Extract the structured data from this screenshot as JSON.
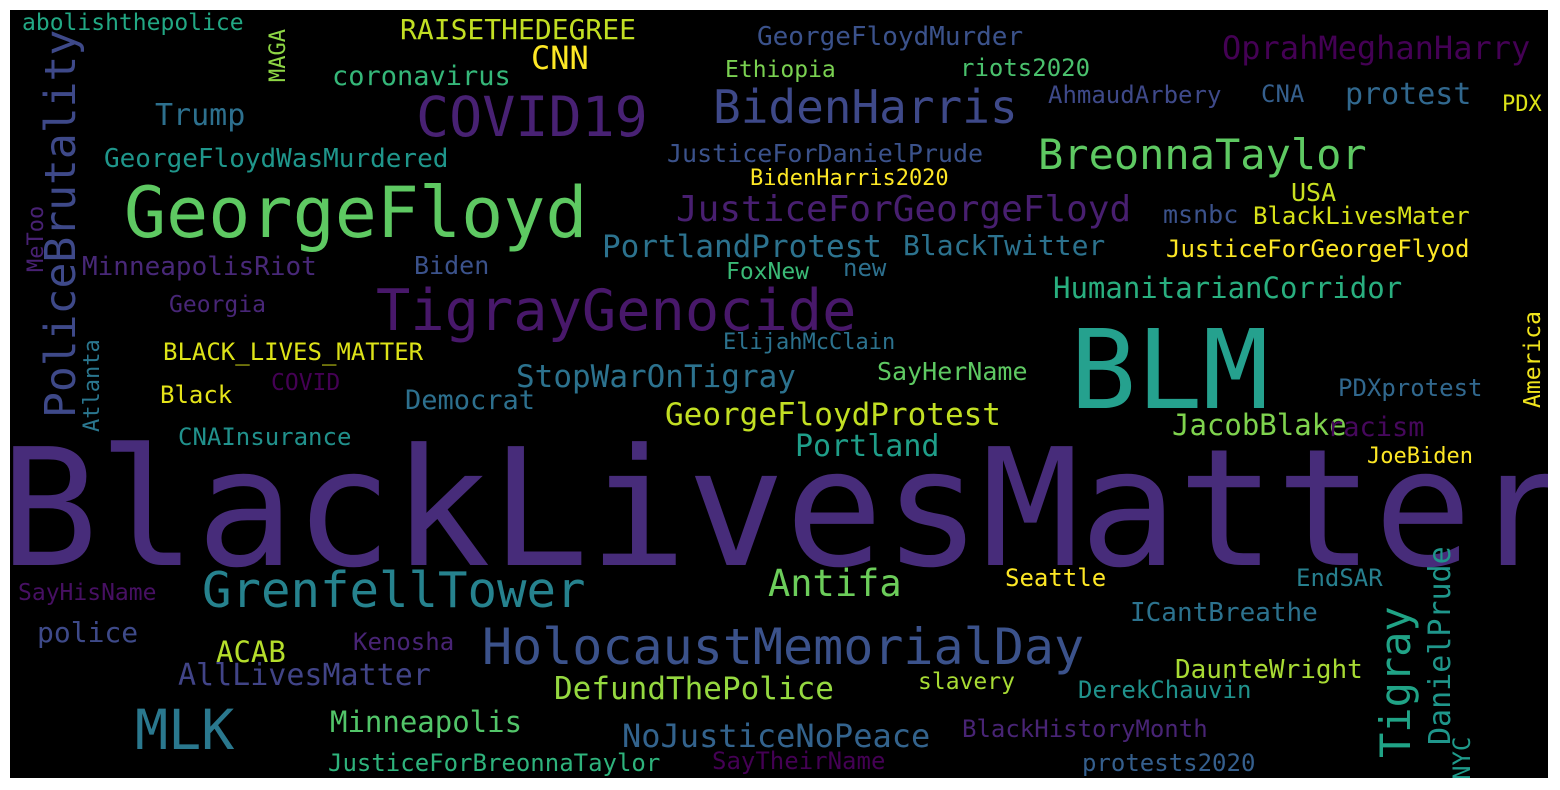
{
  "words": [
    {
      "text": "BlackLivesMatter",
      "color": "#472c7a"
    },
    {
      "text": "BLM",
      "color": "#25a18e"
    },
    {
      "text": "GeorgeFloyd",
      "color": "#5ec962"
    },
    {
      "text": "TigrayGenocide",
      "color": "#48186a"
    },
    {
      "text": "HolocaustMemorialDay",
      "color": "#3b528b"
    },
    {
      "text": "GrenfellTower",
      "color": "#26828e"
    },
    {
      "text": "COVID19",
      "color": "#482173"
    },
    {
      "text": "BidenHarris",
      "color": "#3e4989"
    },
    {
      "text": "BreonnaTaylor",
      "color": "#5ec962"
    },
    {
      "text": "PoliceBrutality",
      "color": "#3e4989"
    },
    {
      "text": "MLK",
      "color": "#2a788e"
    },
    {
      "text": "Tigray",
      "color": "#20a386"
    },
    {
      "text": "Antifa",
      "color": "#6ccd5a"
    },
    {
      "text": "JusticeForGeorgeFloyd",
      "color": "#481f70"
    },
    {
      "text": "OprahMeghanHarry",
      "color": "#440154"
    },
    {
      "text": "PortlandProtest",
      "color": "#2c728e"
    },
    {
      "text": "BlackTwitter",
      "color": "#2c728e"
    },
    {
      "text": "HumanitarianCorridor",
      "color": "#29af7f"
    },
    {
      "text": "StopWarOnTigray",
      "color": "#2c728e"
    },
    {
      "text": "GeorgeFloydProtest",
      "color": "#c2df23"
    },
    {
      "text": "DefundThePolice",
      "color": "#95d840"
    },
    {
      "text": "NoJusticeNoPeace",
      "color": "#33638d"
    },
    {
      "text": "DanielPrude",
      "color": "#1f968b"
    },
    {
      "text": "JacobBlake",
      "color": "#7fd34e"
    },
    {
      "text": "Portland",
      "color": "#1f9e89"
    },
    {
      "text": "Minneapolis",
      "color": "#52c569"
    },
    {
      "text": "AllLivesMatter",
      "color": "#414487"
    },
    {
      "text": "RAISETHEDEGREE",
      "color": "#c2df23"
    },
    {
      "text": "GeorgeFloydMurder",
      "color": "#3b528b"
    },
    {
      "text": "coronavirus",
      "color": "#35b779"
    },
    {
      "text": "CNN",
      "color": "#fde725"
    },
    {
      "text": "Trump",
      "color": "#2d708e"
    },
    {
      "text": "GeorgeFloydWasMurdered",
      "color": "#1f968b"
    },
    {
      "text": "MinneapolisRiot",
      "color": "#482878"
    },
    {
      "text": "Biden",
      "color": "#3b528b"
    },
    {
      "text": "Georgia",
      "color": "#482677"
    },
    {
      "text": "BLACK_LIVES_MATTER",
      "color": "#dde318"
    },
    {
      "text": "Black",
      "color": "#e5e419"
    },
    {
      "text": "COVID",
      "color": "#440154"
    },
    {
      "text": "Democrat",
      "color": "#2d708e"
    },
    {
      "text": "CNAInsurance",
      "color": "#21918c"
    },
    {
      "text": "police",
      "color": "#3e4a89"
    },
    {
      "text": "ACAB",
      "color": "#b5de2b"
    },
    {
      "text": "Kenosha",
      "color": "#482475"
    },
    {
      "text": "SayHisName",
      "color": "#471063"
    },
    {
      "text": "JusticeForBreonnaTaylor",
      "color": "#2eb37c"
    },
    {
      "text": "SayTheirName",
      "color": "#440154"
    },
    {
      "text": "slavery",
      "color": "#a8db34"
    },
    {
      "text": "Seattle",
      "color": "#fde725"
    },
    {
      "text": "ICantBreathe",
      "color": "#2c728e"
    },
    {
      "text": "DaunteWright",
      "color": "#a8db34"
    },
    {
      "text": "DerekChauvin",
      "color": "#20928c"
    },
    {
      "text": "BlackHistoryMonth",
      "color": "#482475"
    },
    {
      "text": "protests2020",
      "color": "#355f8d"
    },
    {
      "text": "NYC",
      "color": "#1f9a8a"
    },
    {
      "text": "EndSAR",
      "color": "#277f8e"
    },
    {
      "text": "JoeBiden",
      "color": "#fde725"
    },
    {
      "text": "racism",
      "color": "#46085c"
    },
    {
      "text": "PDXprotest",
      "color": "#31688e"
    },
    {
      "text": "America",
      "color": "#f1e51d"
    },
    {
      "text": "PDX",
      "color": "#dde318"
    },
    {
      "text": "protest",
      "color": "#31688e"
    },
    {
      "text": "CNA",
      "color": "#355f8d"
    },
    {
      "text": "AhmaudArbery",
      "color": "#3e4989"
    },
    {
      "text": "riots2020",
      "color": "#4ac16d"
    },
    {
      "text": "Ethiopia",
      "color": "#7ad151"
    },
    {
      "text": "JusticeForDanielPrude",
      "color": "#3b528b"
    },
    {
      "text": "BidenHarris2020",
      "color": "#fde725"
    },
    {
      "text": "USA",
      "color": "#c8e020"
    },
    {
      "text": "msnbc",
      "color": "#3b528b"
    },
    {
      "text": "BlackLivesMater",
      "color": "#d8e219"
    },
    {
      "text": "JusticeForGeorgeFlyod",
      "color": "#fde725"
    },
    {
      "text": "FoxNew",
      "color": "#3aba76"
    },
    {
      "text": "new",
      "color": "#2d708e"
    },
    {
      "text": "ElijahMcClain",
      "color": "#2c728e"
    },
    {
      "text": "SayHerName",
      "color": "#5ec962"
    },
    {
      "text": "abolishthepolice",
      "color": "#22a884"
    },
    {
      "text": "MAGA",
      "color": "#8ed645"
    },
    {
      "text": "MeToo",
      "color": "#482173"
    },
    {
      "text": "Atlanta",
      "color": "#2a768e"
    }
  ]
}
